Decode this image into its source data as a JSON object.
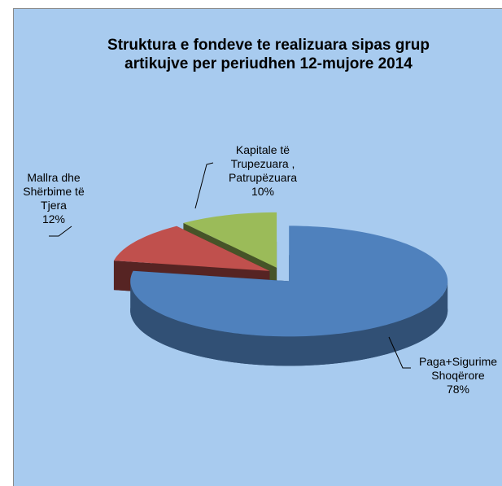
{
  "chart_data": {
    "type": "pie",
    "title": "Struktura  e fondeve te realizuara sipas grup artikujve  per periudhen 12-mujore  2014",
    "categories": [
      "Paga+Sigurime Shoqërore",
      "Mallra dhe Shërbime të Tjera",
      "Kapitale të Trupezuara , Patrupëzuara"
    ],
    "values": [
      78,
      12,
      10
    ],
    "value_labels": [
      "78%",
      "12%",
      "10%"
    ],
    "colors": [
      "#4f81bd",
      "#c0504d",
      "#9bbb59"
    ]
  }
}
